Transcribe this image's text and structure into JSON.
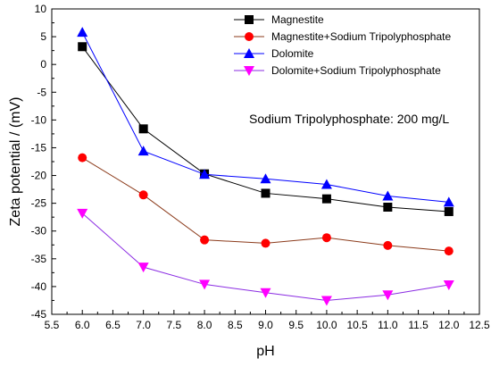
{
  "chart_data": {
    "type": "line",
    "xlabel": "pH",
    "ylabel": "Zeta potential / (mV)",
    "xlim": [
      5.5,
      12.5
    ],
    "ylim": [
      -45,
      10
    ],
    "xticks": [
      "5.5",
      "6.0",
      "6.5",
      "7.0",
      "7.5",
      "8.0",
      "8.5",
      "9.0",
      "9.5",
      "10.0",
      "10.5",
      "11.0",
      "11.5",
      "12.0",
      "12.5"
    ],
    "yticks": [
      "10",
      "5",
      "0",
      "-5",
      "-10",
      "-15",
      "-20",
      "-25",
      "-30",
      "-35",
      "-40",
      "-45"
    ],
    "grid": false,
    "legend_position": "top-right",
    "annotation": "Sodium Tripolyphosphate: 200 mg/L",
    "x": [
      6,
      7,
      8,
      9,
      10,
      11,
      12
    ],
    "series": [
      {
        "name": "Magnestite",
        "marker": "square",
        "color": "#000000",
        "marker_color": "#000000",
        "values": [
          3.2,
          -11.6,
          -19.7,
          -23.2,
          -24.2,
          -25.7,
          -26.5
        ]
      },
      {
        "name": "Magnestite+Sodium Tripolyphosphate",
        "marker": "circle",
        "color": "#8b3a1a",
        "marker_color": "#ff0000",
        "values": [
          -16.8,
          -23.5,
          -31.6,
          -32.2,
          -31.2,
          -32.6,
          -33.6
        ]
      },
      {
        "name": "Dolomite",
        "marker": "triangle-up",
        "color": "#0000ff",
        "marker_color": "#0000ff",
        "values": [
          5.8,
          -15.6,
          -19.8,
          -20.6,
          -21.6,
          -23.7,
          -24.8
        ]
      },
      {
        "name": "Dolomite+Sodium Tripolyphosphate",
        "marker": "triangle-down",
        "color": "#8a2be2",
        "marker_color": "#ff00ff",
        "values": [
          -26.8,
          -36.5,
          -39.6,
          -41.1,
          -42.5,
          -41.5,
          -39.7
        ]
      }
    ]
  }
}
